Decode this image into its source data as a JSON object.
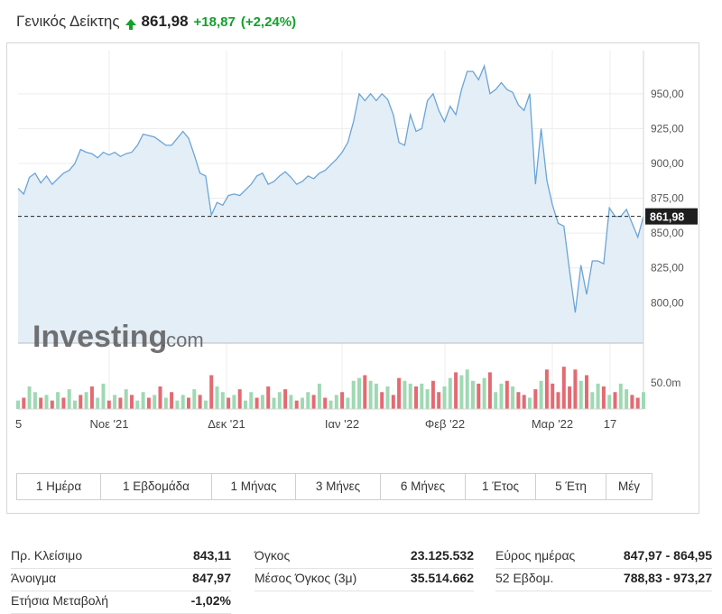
{
  "header": {
    "title": "Γενικός Δείκτης",
    "price": "861,98",
    "change": "+18,87",
    "change_pct": "(+2,24%)"
  },
  "chart_data": {
    "type": "area",
    "x_ticks": [
      "5",
      "Νοε '21",
      "Δεκ '21",
      "Ιαν '22",
      "Φεβ '22",
      "Μαρ '22",
      "17"
    ],
    "y_ticks": [
      "800,00",
      "825,00",
      "850,00",
      "875,00",
      "900,00",
      "925,00",
      "950,00"
    ],
    "ylim": [
      771,
      981
    ],
    "current_value": 861.98,
    "current_label": "861,98",
    "volume_label": "50.0m",
    "watermark_brand": "Investing",
    "watermark_suffix": ".com",
    "values": [
      882,
      878,
      890,
      893,
      886,
      891,
      885,
      889,
      893,
      895,
      900,
      910,
      908,
      907,
      904,
      908,
      906,
      908,
      905,
      907,
      908,
      913,
      921,
      920,
      919,
      916,
      913,
      913,
      918,
      923,
      918,
      906,
      893,
      891,
      863,
      872,
      870,
      877,
      878,
      877,
      881,
      885,
      891,
      893,
      885,
      887,
      891,
      894,
      890,
      885,
      887,
      891,
      889,
      893,
      895,
      899,
      903,
      908,
      915,
      930,
      950,
      945,
      950,
      945,
      950,
      946,
      935,
      915,
      913,
      935,
      923,
      925,
      945,
      950,
      938,
      930,
      941,
      935,
      953,
      966,
      966,
      960,
      970,
      950,
      953,
      958,
      953,
      951,
      942,
      938,
      950,
      885,
      925,
      888,
      870,
      857,
      855,
      823,
      793,
      827,
      806,
      830,
      830,
      828,
      868,
      862,
      862,
      867,
      857,
      847,
      862
    ],
    "volumes": [
      3,
      4,
      8,
      6,
      4,
      5,
      3,
      6,
      4,
      7,
      3,
      5,
      6,
      8,
      4,
      9,
      3,
      5,
      4,
      7,
      5,
      3,
      6,
      4,
      5,
      8,
      4,
      6,
      3,
      5,
      4,
      7,
      5,
      3,
      12,
      8,
      6,
      4,
      5,
      7,
      3,
      6,
      4,
      5,
      8,
      4,
      6,
      7,
      5,
      3,
      4,
      6,
      5,
      9,
      4,
      3,
      5,
      6,
      4,
      10,
      11,
      12,
      10,
      9,
      6,
      8,
      5,
      11,
      10,
      9,
      8,
      9,
      7,
      10,
      6,
      8,
      11,
      13,
      12,
      14,
      10,
      9,
      11,
      13,
      6,
      9,
      10,
      8,
      6,
      5,
      4,
      7,
      10,
      14,
      9,
      6,
      15,
      8,
      14,
      10,
      12,
      6,
      9,
      8,
      5,
      6,
      9,
      7,
      5,
      4,
      6
    ],
    "volume_colors_up": [
      1,
      0,
      1,
      1,
      0,
      1,
      0,
      1,
      0,
      1,
      1,
      0,
      1,
      0,
      1,
      1,
      0,
      1,
      0,
      1,
      0,
      1,
      1,
      0,
      1,
      0,
      1,
      0,
      1,
      1,
      0,
      1,
      0,
      1,
      0,
      1,
      1,
      0,
      1,
      0,
      1,
      1,
      0,
      1,
      0,
      1,
      1,
      0,
      1,
      0,
      1,
      1,
      0,
      1,
      0,
      1,
      1,
      0,
      1,
      1,
      1,
      0,
      1,
      1,
      0,
      1,
      0,
      0,
      1,
      1,
      0,
      1,
      1,
      0,
      0,
      1,
      1,
      0,
      1,
      1,
      1,
      0,
      1,
      0,
      1,
      1,
      0,
      1,
      0,
      0,
      1,
      0,
      1,
      0,
      0,
      0,
      0,
      0,
      0,
      1,
      0,
      1,
      1,
      0,
      1,
      0,
      1,
      1,
      0,
      0,
      1
    ],
    "grid": true
  },
  "ranges": [
    {
      "label": "1 Ημέρα",
      "w": 93
    },
    {
      "label": "1 Εβδομάδα",
      "w": 123
    },
    {
      "label": "1 Μήνας",
      "w": 93
    },
    {
      "label": "3 Μήνες",
      "w": 94
    },
    {
      "label": "6 Μήνες",
      "w": 94
    },
    {
      "label": "1 Έτος",
      "w": 78
    },
    {
      "label": "5 Έτη",
      "w": 78
    },
    {
      "label": "Μέγ",
      "w": 50
    }
  ],
  "stats": [
    {
      "label": "Πρ. Κλείσιμο",
      "value": "843,11"
    },
    {
      "label": "Άνοιγμα",
      "value": "847,97"
    },
    {
      "label": "Ετήσια Μεταβολή",
      "value": "-1,02%"
    },
    {
      "label": "Όγκος",
      "value": "23.125.532"
    },
    {
      "label": "Μέσος Όγκος (3μ)",
      "value": "35.514.662"
    },
    {
      "label": "Εύρος ημέρας",
      "value": "847,97 - 864,95"
    },
    {
      "label": "52 Εβδομ.",
      "value": "788,83 - 973,27"
    }
  ],
  "colors": {
    "line": "#6aa5d6",
    "area": "#e4eef7",
    "vol_up": "#9fd9b3",
    "vol_down": "#e46a72",
    "label_bg": "#1e1e1e"
  }
}
